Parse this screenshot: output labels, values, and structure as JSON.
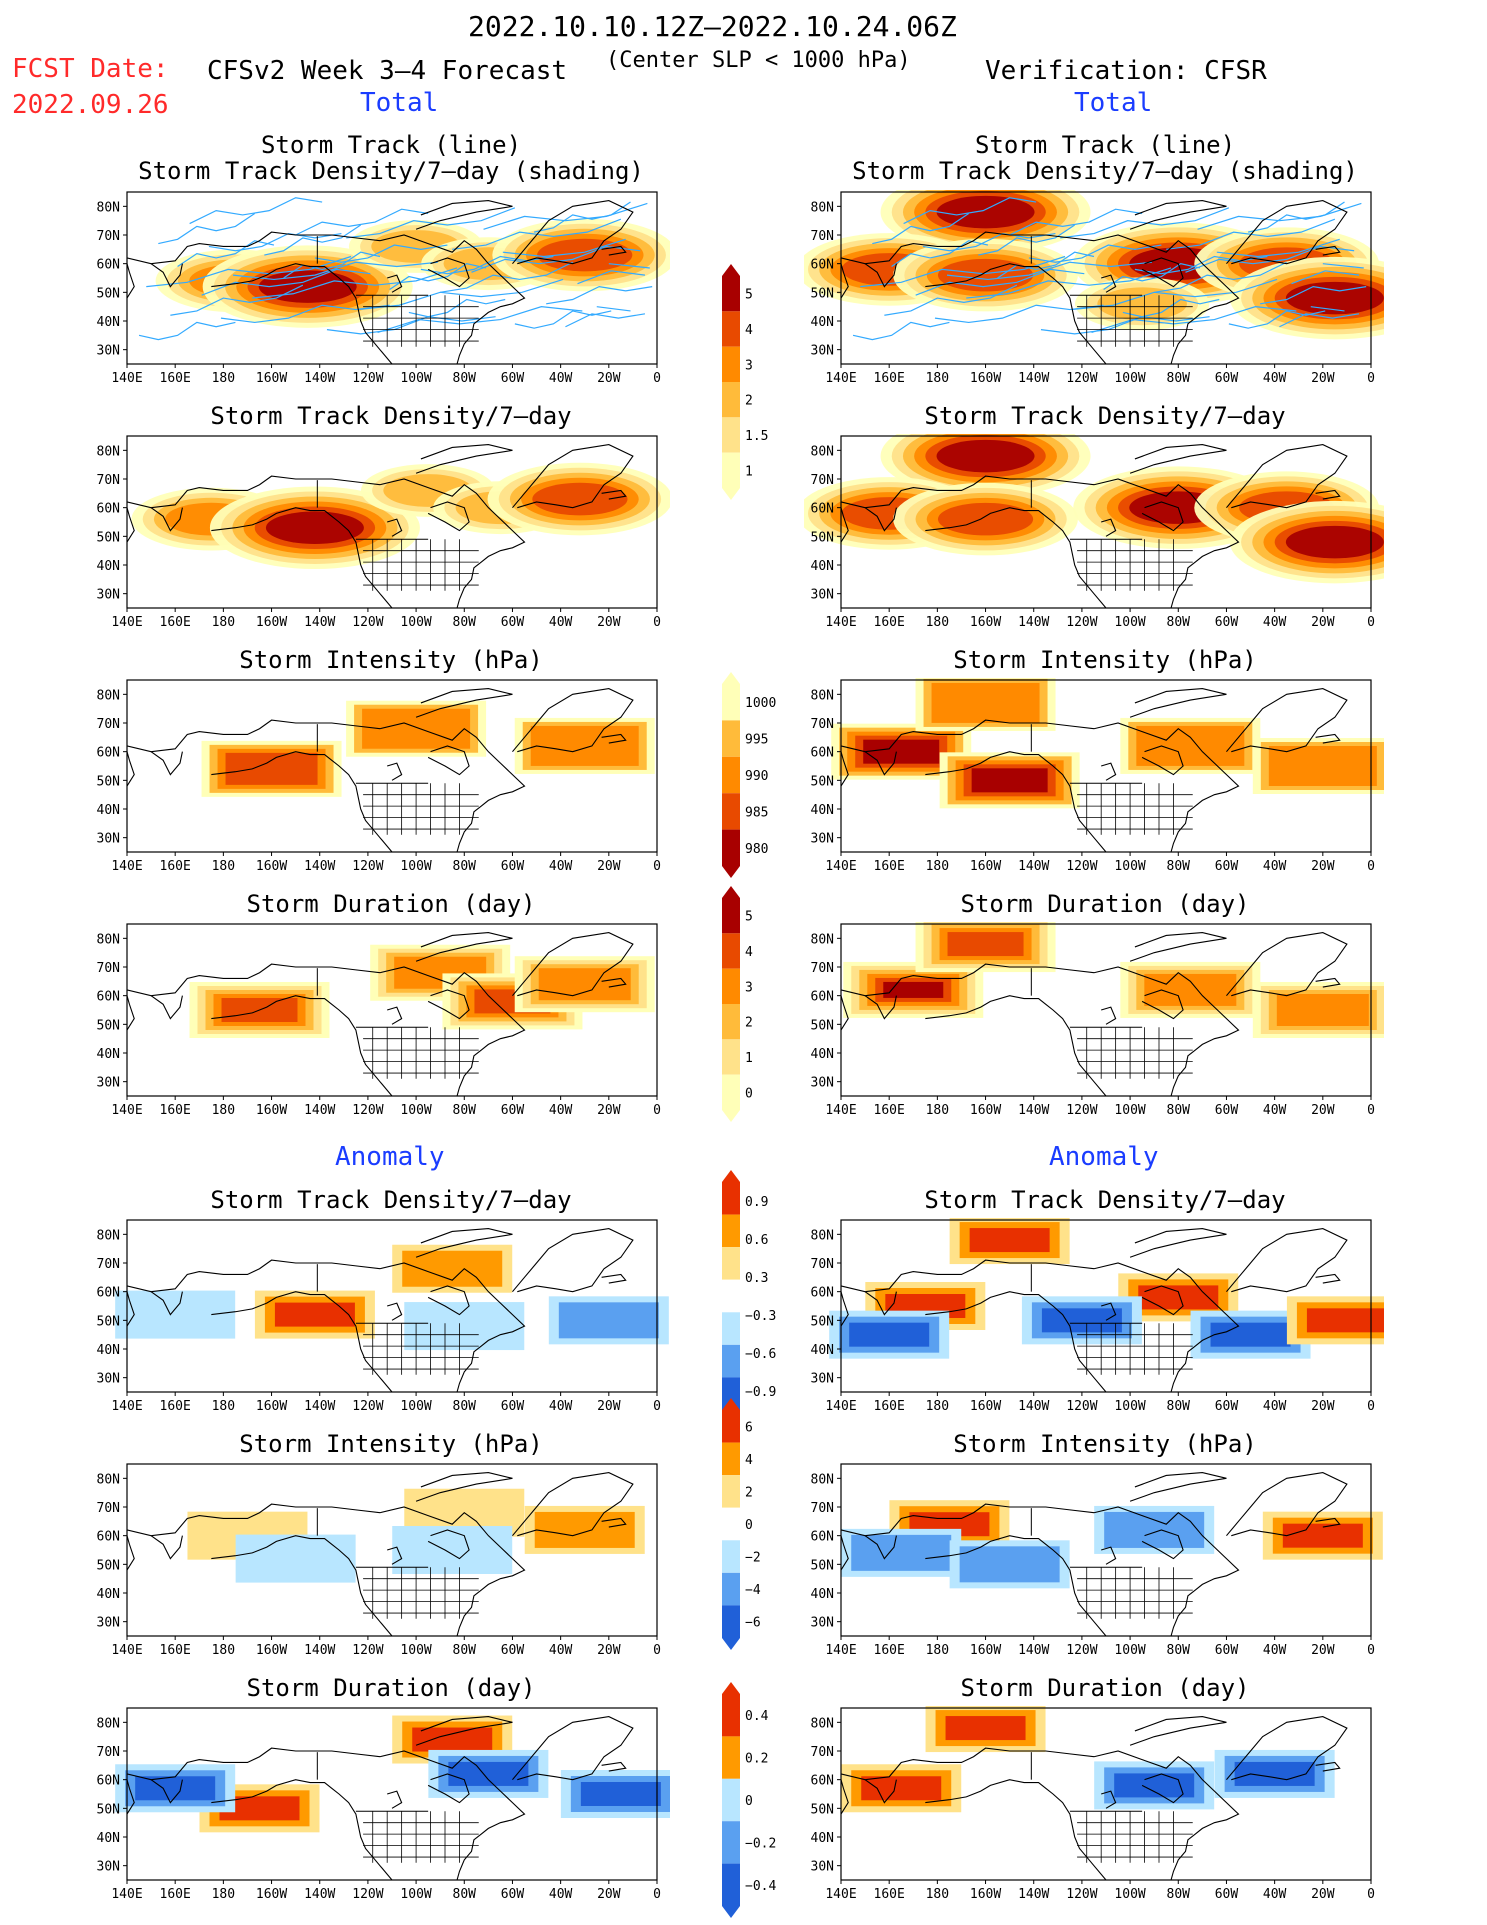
{
  "header": {
    "date_range": "2022.10.10.12Z–2022.10.24.06Z",
    "fcst_label": "FCST Date:",
    "fcst_date": "2022.09.26",
    "model_title": "CFSv2 Week 3–4 Forecast",
    "criterion": "(Center SLP < 1000 hPa)",
    "verification": "Verification: CFSR"
  },
  "sections": {
    "total_label": "Total",
    "anomaly_label": "Anomaly"
  },
  "axes": {
    "lat_ticks": [
      "80N",
      "70N",
      "60N",
      "50N",
      "40N",
      "30N"
    ],
    "lon_ticks": [
      "140E",
      "160E",
      "180",
      "160W",
      "140W",
      "120W",
      "100W",
      "80W",
      "60W",
      "40W",
      "20W",
      "0"
    ]
  },
  "colors": {
    "track_line": "#33aaff",
    "density_levels": [
      "#ffffb8",
      "#ffe28a",
      "#ffbb3a",
      "#ff8a00",
      "#e84a00",
      "#a80000"
    ],
    "intensity_levels": [
      "#ffffb8",
      "#ffbb3a",
      "#ff8a00",
      "#e84a00",
      "#a80000"
    ],
    "anomaly_levels": [
      "#2060d8",
      "#5aa0f0",
      "#b8e6ff",
      "#ffffff",
      "#ffe28a",
      "#ff9a00",
      "#e83000"
    ]
  },
  "colorbars": {
    "density": [
      "5",
      "4",
      "3",
      "2",
      "1.5",
      "1"
    ],
    "intensity": [
      "1000",
      "995",
      "990",
      "985",
      "980"
    ],
    "duration": [
      "5",
      "4",
      "3",
      "2",
      "1",
      "0"
    ],
    "density_anom": [
      "0.9",
      "0.6",
      "0.3",
      "−0.3",
      "−0.6",
      "−0.9"
    ],
    "intensity_anom": [
      "6",
      "4",
      "2",
      "0",
      "−2",
      "−4",
      "−6"
    ],
    "duration_anom": [
      "0.4",
      "0.2",
      "0",
      "−0.2",
      "−0.4"
    ]
  },
  "chart_data": [
    {
      "type": "heatmap",
      "column": "forecast",
      "title_lines": [
        "Storm Track (line)",
        "Storm Track Density/7–day (shading)"
      ],
      "field": "density",
      "tracks": true,
      "blobs": [
        {
          "lon": 185,
          "lat": 54,
          "value": 3
        },
        {
          "lon": 215,
          "lat": 52,
          "value": 5
        },
        {
          "lon": 260,
          "lat": 66,
          "value": 2
        },
        {
          "lon": 290,
          "lat": 60,
          "value": 2
        },
        {
          "lon": 330,
          "lat": 63,
          "value": 4
        }
      ]
    },
    {
      "type": "heatmap",
      "column": "verification",
      "title_lines": [
        "Storm Track (line)",
        "Storm Track Density/7–day (shading)"
      ],
      "field": "density",
      "tracks": true,
      "blobs": [
        {
          "lon": 200,
          "lat": 78,
          "value": 5
        },
        {
          "lon": 160,
          "lat": 58,
          "value": 4
        },
        {
          "lon": 200,
          "lat": 56,
          "value": 4
        },
        {
          "lon": 280,
          "lat": 60,
          "value": 5
        },
        {
          "lon": 325,
          "lat": 60,
          "value": 4
        },
        {
          "lon": 345,
          "lat": 48,
          "value": 5
        },
        {
          "lon": 265,
          "lat": 46,
          "value": 2
        }
      ]
    },
    {
      "type": "heatmap",
      "column": "forecast",
      "title_lines": [
        "Storm Track Density/7–day"
      ],
      "field": "density",
      "blobs": [
        {
          "lon": 175,
          "lat": 56,
          "value": 3
        },
        {
          "lon": 218,
          "lat": 53,
          "value": 5
        },
        {
          "lon": 265,
          "lat": 66,
          "value": 2
        },
        {
          "lon": 295,
          "lat": 60,
          "value": 2
        },
        {
          "lon": 328,
          "lat": 63,
          "value": 4
        }
      ]
    },
    {
      "type": "heatmap",
      "column": "verification",
      "title_lines": [
        "Storm Track Density/7–day"
      ],
      "field": "density",
      "blobs": [
        {
          "lon": 200,
          "lat": 78,
          "value": 5
        },
        {
          "lon": 160,
          "lat": 58,
          "value": 4
        },
        {
          "lon": 200,
          "lat": 56,
          "value": 4
        },
        {
          "lon": 280,
          "lat": 60,
          "value": 5
        },
        {
          "lon": 325,
          "lat": 60,
          "value": 4
        },
        {
          "lon": 345,
          "lat": 48,
          "value": 5
        }
      ]
    },
    {
      "type": "heatmap",
      "column": "forecast",
      "title_lines": [
        "Storm Intensity (hPa)"
      ],
      "field": "intensity",
      "blobs": [
        {
          "lon": 200,
          "lat": 54,
          "value": 985
        },
        {
          "lon": 260,
          "lat": 68,
          "value": 990
        },
        {
          "lon": 330,
          "lat": 62,
          "value": 988
        }
      ]
    },
    {
      "type": "heatmap",
      "column": "verification",
      "title_lines": [
        "Storm Intensity (hPa)"
      ],
      "field": "intensity",
      "blobs": [
        {
          "lon": 165,
          "lat": 60,
          "value": 982
        },
        {
          "lon": 210,
          "lat": 50,
          "value": 982
        },
        {
          "lon": 200,
          "lat": 77,
          "value": 990
        },
        {
          "lon": 285,
          "lat": 62,
          "value": 988
        },
        {
          "lon": 340,
          "lat": 55,
          "value": 988
        }
      ]
    },
    {
      "type": "heatmap",
      "column": "forecast",
      "title_lines": [
        "Storm Duration (day)"
      ],
      "field": "duration",
      "blobs": [
        {
          "lon": 195,
          "lat": 55,
          "value": 4
        },
        {
          "lon": 270,
          "lat": 68,
          "value": 3
        },
        {
          "lon": 300,
          "lat": 58,
          "value": 4
        },
        {
          "lon": 330,
          "lat": 64,
          "value": 3
        }
      ]
    },
    {
      "type": "heatmap",
      "column": "verification",
      "title_lines": [
        "Storm Duration (day)"
      ],
      "field": "duration",
      "blobs": [
        {
          "lon": 170,
          "lat": 62,
          "value": 5
        },
        {
          "lon": 200,
          "lat": 78,
          "value": 4
        },
        {
          "lon": 285,
          "lat": 62,
          "value": 3
        },
        {
          "lon": 340,
          "lat": 55,
          "value": 3
        }
      ]
    },
    {
      "type": "heatmap",
      "column": "forecast",
      "title_lines": [
        "Storm Track Density/7–day"
      ],
      "field": "density_anom",
      "blobs": [
        {
          "lon": 218,
          "lat": 52,
          "value": 0.9
        },
        {
          "lon": 275,
          "lat": 68,
          "value": 0.6
        },
        {
          "lon": 160,
          "lat": 52,
          "value": -0.3
        },
        {
          "lon": 280,
          "lat": 48,
          "value": -0.3
        },
        {
          "lon": 340,
          "lat": 50,
          "value": -0.6
        }
      ]
    },
    {
      "type": "heatmap",
      "column": "verification",
      "title_lines": [
        "Storm Track Density/7–day"
      ],
      "field": "density_anom",
      "blobs": [
        {
          "lon": 175,
          "lat": 55,
          "value": 0.9
        },
        {
          "lon": 280,
          "lat": 58,
          "value": 0.9
        },
        {
          "lon": 210,
          "lat": 78,
          "value": 0.9
        },
        {
          "lon": 160,
          "lat": 45,
          "value": -0.9
        },
        {
          "lon": 240,
          "lat": 50,
          "value": -0.9
        },
        {
          "lon": 310,
          "lat": 45,
          "value": -0.9
        },
        {
          "lon": 350,
          "lat": 50,
          "value": 0.9
        }
      ]
    },
    {
      "type": "heatmap",
      "column": "forecast",
      "title_lines": [
        "Storm Intensity (hPa)"
      ],
      "field": "intensity_anom",
      "blobs": [
        {
          "lon": 190,
          "lat": 60,
          "value": 2
        },
        {
          "lon": 280,
          "lat": 68,
          "value": 2
        },
        {
          "lon": 330,
          "lat": 62,
          "value": 4
        },
        {
          "lon": 210,
          "lat": 52,
          "value": -1
        },
        {
          "lon": 275,
          "lat": 55,
          "value": -2
        }
      ]
    },
    {
      "type": "heatmap",
      "column": "verification",
      "title_lines": [
        "Storm Intensity (hPa)"
      ],
      "field": "intensity_anom",
      "blobs": [
        {
          "lon": 185,
          "lat": 64,
          "value": 6
        },
        {
          "lon": 340,
          "lat": 60,
          "value": 6
        },
        {
          "lon": 165,
          "lat": 54,
          "value": -4
        },
        {
          "lon": 210,
          "lat": 50,
          "value": -4
        },
        {
          "lon": 270,
          "lat": 62,
          "value": -4
        }
      ]
    },
    {
      "type": "heatmap",
      "column": "forecast",
      "title_lines": [
        "Storm Duration (day)"
      ],
      "field": "duration_anom",
      "blobs": [
        {
          "lon": 195,
          "lat": 50,
          "value": 0.4
        },
        {
          "lon": 275,
          "lat": 74,
          "value": 0.4
        },
        {
          "lon": 160,
          "lat": 57,
          "value": -0.4
        },
        {
          "lon": 290,
          "lat": 62,
          "value": -0.4
        },
        {
          "lon": 345,
          "lat": 55,
          "value": -0.4
        }
      ]
    },
    {
      "type": "heatmap",
      "column": "verification",
      "title_lines": [
        "Storm Duration (day)"
      ],
      "field": "duration_anom",
      "blobs": [
        {
          "lon": 200,
          "lat": 78,
          "value": 0.4
        },
        {
          "lon": 165,
          "lat": 57,
          "value": 0.4
        },
        {
          "lon": 270,
          "lat": 58,
          "value": -0.4
        },
        {
          "lon": 320,
          "lat": 62,
          "value": -0.4
        }
      ]
    }
  ]
}
